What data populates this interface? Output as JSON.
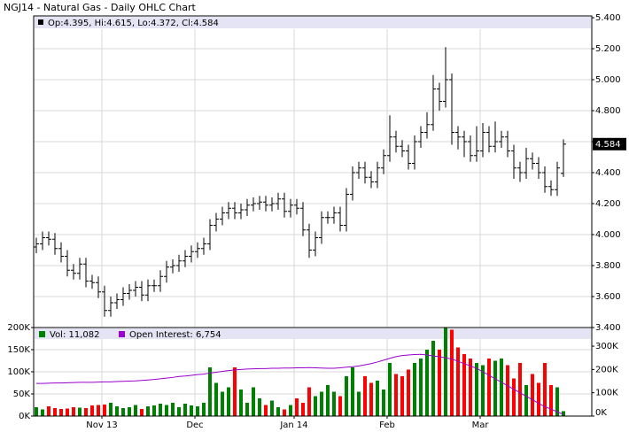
{
  "chart_data": [
    {
      "type": "ohlc",
      "title": "NGJ14 - Natural Gas - Daily OHLC Chart",
      "info": "Op:4.395, Hi:4.615, Lo:4.372, Cl:4.584",
      "color": "#000000",
      "open": [
        3.92,
        3.94,
        3.98,
        3.97,
        3.91,
        3.86,
        3.77,
        3.75,
        3.81,
        3.7,
        3.69,
        3.63,
        3.51,
        3.56,
        3.58,
        3.62,
        3.64,
        3.66,
        3.61,
        3.67,
        3.67,
        3.73,
        3.79,
        3.8,
        3.83,
        3.86,
        3.89,
        3.91,
        3.94,
        4.06,
        4.1,
        4.14,
        4.17,
        4.14,
        4.16,
        4.19,
        4.2,
        4.21,
        4.19,
        4.2,
        4.23,
        4.15,
        4.19,
        4.17,
        4.03,
        3.9,
        3.98,
        4.11,
        4.11,
        4.14,
        4.06,
        4.26,
        4.4,
        4.43,
        4.37,
        4.34,
        4.43,
        4.51,
        4.63,
        4.57,
        4.54,
        4.46,
        4.6,
        4.66,
        4.71,
        4.94,
        4.86,
        5.0,
        4.66,
        4.63,
        4.6,
        4.51,
        4.54,
        4.66,
        4.57,
        4.6,
        4.63,
        4.54,
        4.43,
        4.4,
        4.49,
        4.46,
        4.4,
        4.31,
        4.29,
        4.395
      ],
      "high": [
        3.98,
        4.02,
        4.02,
        4.01,
        3.95,
        3.9,
        3.81,
        3.85,
        3.85,
        3.74,
        3.73,
        3.67,
        3.6,
        3.62,
        3.66,
        3.68,
        3.7,
        3.7,
        3.71,
        3.71,
        3.77,
        3.83,
        3.84,
        3.87,
        3.9,
        3.93,
        3.95,
        3.98,
        4.1,
        4.14,
        4.18,
        4.21,
        4.21,
        4.2,
        4.23,
        4.24,
        4.25,
        4.25,
        4.24,
        4.27,
        4.27,
        4.23,
        4.23,
        4.21,
        4.07,
        4.02,
        4.15,
        4.15,
        4.18,
        4.18,
        4.3,
        4.44,
        4.47,
        4.47,
        4.41,
        4.47,
        4.55,
        4.77,
        4.67,
        4.61,
        4.58,
        4.64,
        4.7,
        4.79,
        5.03,
        4.98,
        5.21,
        5.04,
        4.7,
        4.67,
        4.64,
        4.7,
        4.72,
        4.7,
        4.73,
        4.67,
        4.67,
        4.58,
        4.47,
        4.56,
        4.53,
        4.5,
        4.44,
        4.35,
        4.47,
        4.615
      ],
      "low": [
        3.88,
        3.9,
        3.93,
        3.87,
        3.82,
        3.73,
        3.71,
        3.71,
        3.66,
        3.65,
        3.59,
        3.47,
        3.47,
        3.52,
        3.54,
        3.58,
        3.6,
        3.57,
        3.57,
        3.63,
        3.63,
        3.69,
        3.75,
        3.76,
        3.79,
        3.82,
        3.85,
        3.87,
        3.9,
        4.02,
        4.06,
        4.1,
        4.1,
        4.1,
        4.12,
        4.15,
        4.16,
        4.15,
        4.15,
        4.16,
        4.11,
        4.11,
        4.13,
        3.99,
        3.85,
        3.86,
        3.94,
        4.07,
        4.07,
        4.02,
        4.02,
        4.22,
        4.36,
        4.33,
        4.3,
        4.3,
        4.39,
        4.47,
        4.53,
        4.5,
        4.42,
        4.42,
        4.56,
        4.62,
        4.67,
        4.8,
        4.82,
        4.58,
        4.55,
        4.5,
        4.47,
        4.47,
        4.5,
        4.53,
        4.53,
        4.56,
        4.5,
        4.36,
        4.34,
        4.36,
        4.42,
        4.36,
        4.27,
        4.25,
        4.25,
        4.372
      ],
      "close": [
        3.94,
        3.98,
        3.97,
        3.91,
        3.86,
        3.77,
        3.75,
        3.81,
        3.7,
        3.69,
        3.63,
        3.51,
        3.56,
        3.58,
        3.62,
        3.64,
        3.66,
        3.61,
        3.67,
        3.67,
        3.73,
        3.79,
        3.8,
        3.83,
        3.86,
        3.89,
        3.91,
        3.94,
        4.06,
        4.1,
        4.14,
        4.17,
        4.14,
        4.16,
        4.19,
        4.2,
        4.21,
        4.19,
        4.2,
        4.23,
        4.15,
        4.19,
        4.17,
        4.03,
        3.9,
        3.98,
        4.11,
        4.11,
        4.14,
        4.06,
        4.26,
        4.4,
        4.43,
        4.37,
        4.34,
        4.43,
        4.51,
        4.63,
        4.57,
        4.54,
        4.46,
        4.6,
        4.66,
        4.71,
        4.94,
        4.86,
        5.0,
        4.66,
        4.63,
        4.6,
        4.51,
        4.54,
        4.66,
        4.57,
        4.6,
        4.63,
        4.54,
        4.43,
        4.4,
        4.49,
        4.46,
        4.4,
        4.31,
        4.29,
        4.43,
        4.584
      ],
      "ylim": [
        3.4,
        5.4
      ],
      "yticks": [
        {
          "value": 3.4,
          "label": "3.400"
        },
        {
          "value": 3.6,
          "label": "3.600"
        },
        {
          "value": 3.8,
          "label": "3.800"
        },
        {
          "value": 4.0,
          "label": "4.000"
        },
        {
          "value": 4.2,
          "label": "4.200"
        },
        {
          "value": 4.4,
          "label": "4.400"
        },
        {
          "value": 4.6,
          "label": "4.600"
        },
        {
          "value": 4.8,
          "label": "4.800"
        },
        {
          "value": 5.0,
          "label": "5.000"
        },
        {
          "value": 5.2,
          "label": "5.200"
        },
        {
          "value": 5.4,
          "label": "5.400"
        }
      ],
      "grid": true
    },
    {
      "type": "volume",
      "categories": [
        null,
        null,
        null,
        null,
        null,
        null,
        null,
        null,
        null,
        null,
        null,
        "Nov 13",
        null,
        null,
        null,
        null,
        null,
        null,
        null,
        null,
        null,
        null,
        null,
        null,
        null,
        null,
        "Dec",
        null,
        null,
        null,
        null,
        null,
        null,
        null,
        null,
        null,
        null,
        null,
        null,
        null,
        null,
        null,
        "Jan 14",
        null,
        null,
        null,
        null,
        null,
        null,
        null,
        null,
        null,
        null,
        null,
        null,
        null,
        null,
        "Feb",
        null,
        null,
        null,
        null,
        null,
        null,
        null,
        null,
        null,
        null,
        null,
        null,
        null,
        null,
        "Mar",
        null,
        null,
        null,
        null,
        null,
        null,
        null,
        null,
        null,
        null,
        null,
        null,
        null
      ],
      "series": [
        {
          "name": "Vol: 11,082",
          "color": "#008000",
          "down_color": "#ff0000",
          "values": [
            20000,
            15000,
            22000,
            18000,
            16000,
            17000,
            20000,
            19000,
            18000,
            24000,
            25000,
            26000,
            30000,
            22000,
            18000,
            20000,
            25000,
            16000,
            22000,
            24000,
            28000,
            25000,
            30000,
            20000,
            28000,
            24000,
            22000,
            30000,
            110000,
            75000,
            55000,
            65000,
            110000,
            60000,
            30000,
            65000,
            40000,
            25000,
            35000,
            20000,
            15000,
            25000,
            40000,
            30000,
            65000,
            45000,
            55000,
            70000,
            55000,
            45000,
            90000,
            110000,
            55000,
            90000,
            75000,
            80000,
            60000,
            120000,
            95000,
            90000,
            105000,
            120000,
            130000,
            150000,
            170000,
            150000,
            200000,
            195000,
            155000,
            140000,
            130000,
            120000,
            115000,
            130000,
            125000,
            130000,
            115000,
            85000,
            120000,
            70000,
            95000,
            75000,
            120000,
            70000,
            65000,
            11082
          ]
        },
        {
          "name": "Open Interest: 6,754",
          "color": "#9900cc",
          "axis": "y2",
          "values": [
            140000,
            140000,
            141000,
            142000,
            142000,
            143000,
            144000,
            145000,
            145000,
            145000,
            146000,
            147000,
            147000,
            148000,
            149000,
            150000,
            151000,
            153000,
            155000,
            157000,
            160000,
            163000,
            166000,
            170000,
            172000,
            175000,
            178000,
            180000,
            185000,
            188000,
            192000,
            195000,
            198000,
            200000,
            202000,
            203000,
            204000,
            204000,
            205000,
            205000,
            206000,
            206000,
            207000,
            207000,
            208000,
            207000,
            206000,
            205000,
            205000,
            207000,
            210000,
            212000,
            215000,
            220000,
            225000,
            232000,
            240000,
            248000,
            255000,
            260000,
            262000,
            264000,
            265000,
            262000,
            258000,
            255000,
            250000,
            245000,
            235000,
            225000,
            215000,
            205000,
            190000,
            175000,
            160000,
            145000,
            130000,
            115000,
            100000,
            85000,
            70000,
            55000,
            40000,
            30000,
            18000,
            6754
          ]
        }
      ],
      "ylim": [
        0,
        200000
      ],
      "yticks": [
        {
          "value": 0,
          "label": "0K"
        },
        {
          "value": 50000,
          "label": "50K"
        },
        {
          "value": 100000,
          "label": "100K"
        },
        {
          "value": 150000,
          "label": "150K"
        },
        {
          "value": 200000,
          "label": "200K"
        }
      ],
      "y2lim": [
        0,
        380000
      ],
      "y2ticks": [
        {
          "value": 0,
          "label": "0K"
        },
        {
          "value": 100000,
          "label": "100K"
        },
        {
          "value": 200000,
          "label": "200K"
        },
        {
          "value": 300000,
          "label": "300K"
        }
      ],
      "grid": true
    }
  ]
}
